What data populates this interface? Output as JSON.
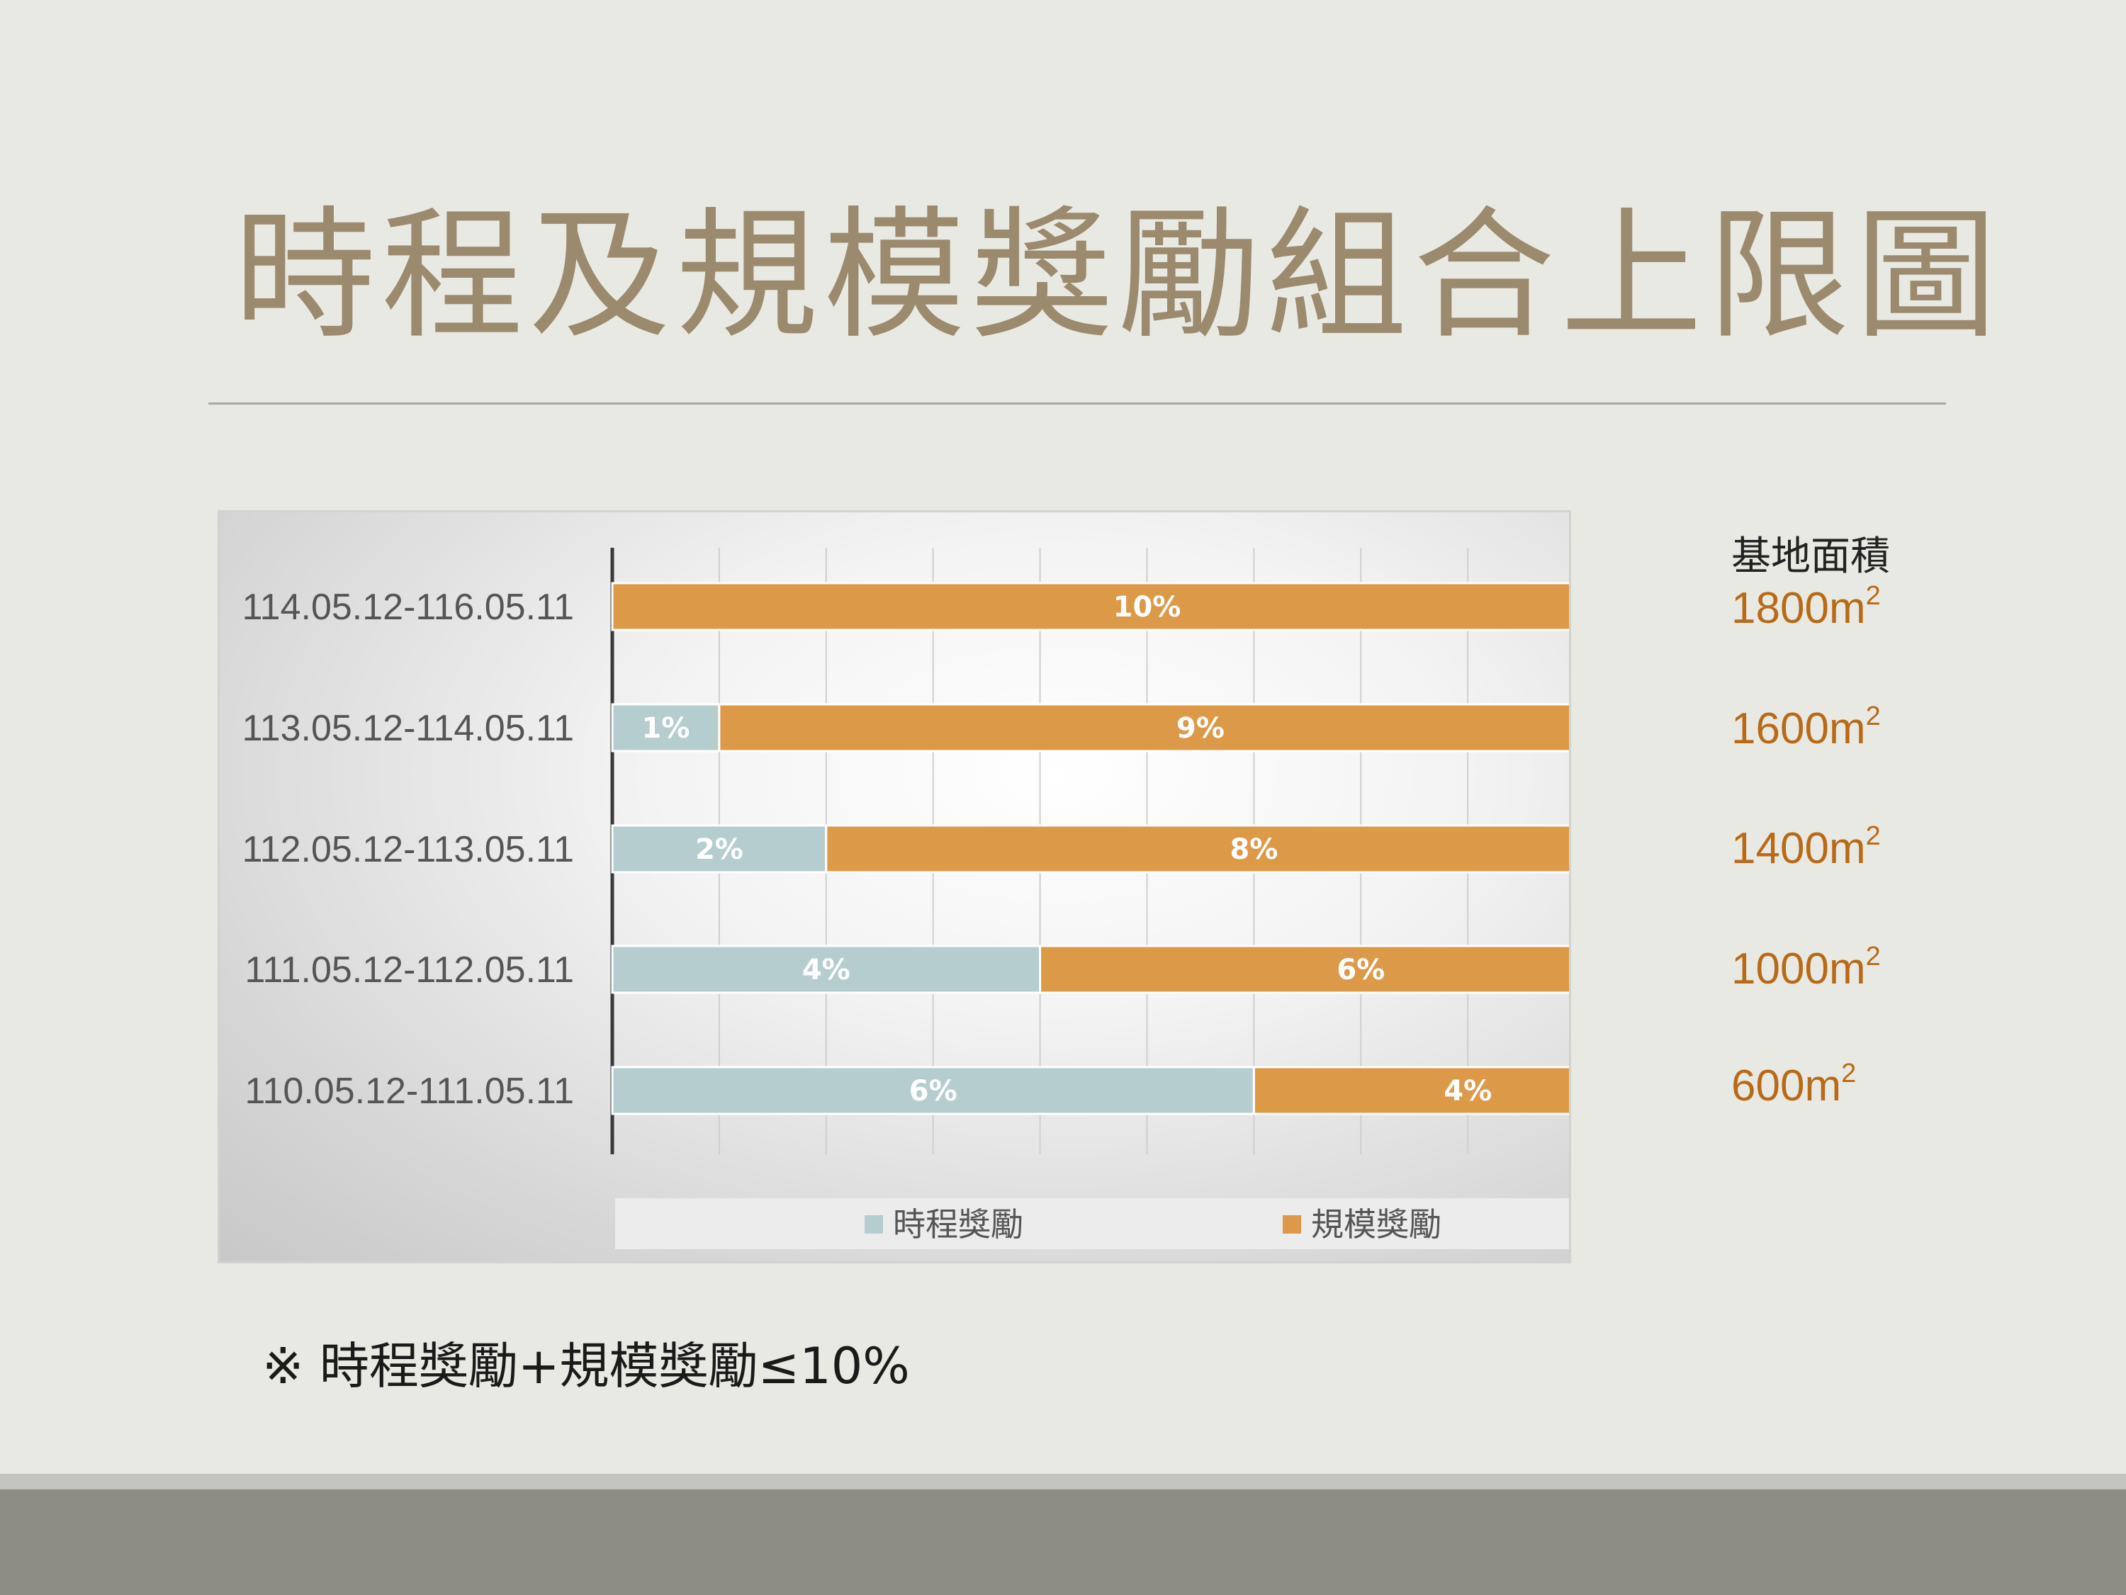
{
  "title": "時程及規模獎勵組合上限圖",
  "colors": {
    "time_bonus": "#b6cdcf",
    "scale_bonus": "#dc9a48",
    "area_text": "#b86a16",
    "title_text": "#9c8a6e"
  },
  "area": {
    "heading": "基地面積",
    "unit_base": "m",
    "unit_exp": "2",
    "values": [
      "1800",
      "1600",
      "1400",
      "1000",
      "600"
    ]
  },
  "footnote": "※ 時程獎勵+規模獎勵≤10%",
  "chart_data": {
    "type": "bar",
    "orientation": "horizontal",
    "stacked": true,
    "title": "",
    "xlabel": "",
    "ylabel": "",
    "xlim": [
      0,
      10
    ],
    "grid": true,
    "legend": "bottom",
    "categories": [
      "114.05.12-116.05.11",
      "113.05.12-114.05.11",
      "112.05.12-113.05.11",
      "111.05.12-112.05.11",
      "110.05.12-111.05.11"
    ],
    "series": [
      {
        "name": "時程獎勵",
        "values": [
          0,
          1,
          2,
          4,
          6
        ],
        "labels": [
          "",
          "1%",
          "2%",
          "4%",
          "6%"
        ]
      },
      {
        "name": "規模獎勵",
        "values": [
          10,
          9,
          8,
          6,
          4
        ],
        "labels": [
          "10%",
          "9%",
          "8%",
          "6%",
          "4%"
        ]
      }
    ]
  }
}
